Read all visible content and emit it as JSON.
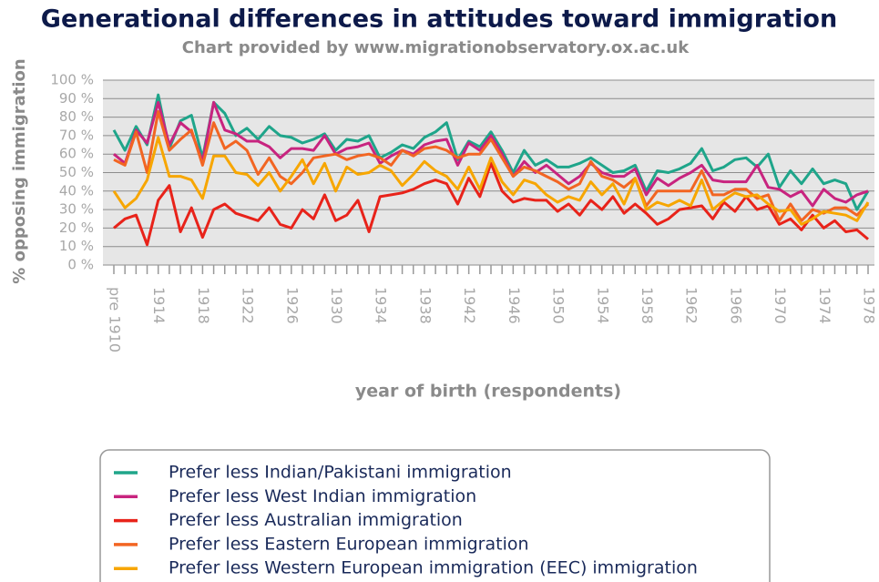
{
  "chart_data": {
    "type": "line",
    "title": "Generational differences in attitudes toward immigration",
    "subtitle": "Chart provided by www.migrationobservatory.ox.ac.uk",
    "x_label": "year of birth (respondents)",
    "y_label": "% opposing immigration",
    "categories": [
      "pre 1910",
      null,
      null,
      null,
      "1914",
      null,
      null,
      null,
      "1918",
      null,
      null,
      null,
      "1922",
      null,
      null,
      null,
      "1926",
      null,
      null,
      null,
      "1930",
      null,
      null,
      null,
      "1934",
      null,
      null,
      null,
      "1938",
      null,
      null,
      null,
      "1942",
      null,
      null,
      null,
      "1946",
      null,
      null,
      null,
      "1950",
      null,
      null,
      null,
      "1954",
      null,
      null,
      null,
      "1958",
      null,
      null,
      null,
      "1962",
      null,
      null,
      null,
      "1966",
      null,
      null,
      null,
      "1970",
      null,
      null,
      null,
      "1974",
      null,
      null,
      null,
      "1978"
    ],
    "ylim": [
      0,
      100
    ],
    "yticks": [
      {
        "value": 0,
        "label": "0 %"
      },
      {
        "value": 10,
        "label": "10 %"
      },
      {
        "value": 20,
        "label": "20 %"
      },
      {
        "value": 30,
        "label": "30 %"
      },
      {
        "value": 40,
        "label": "40 %"
      },
      {
        "value": 50,
        "label": "50 %"
      },
      {
        "value": 60,
        "label": "60 %"
      },
      {
        "value": 70,
        "label": "70 %"
      },
      {
        "value": 80,
        "label": "80 %"
      },
      {
        "value": 90,
        "label": "90 %"
      },
      {
        "value": 100,
        "label": "100 %"
      }
    ],
    "grid": true,
    "series": [
      {
        "name": "Prefer less Indian/Pakistani immigration",
        "color": "#1fa58a",
        "values": [
          73,
          62,
          75,
          65,
          92,
          63,
          78,
          81,
          58,
          88,
          82,
          70,
          74,
          68,
          75,
          70,
          69,
          66,
          68,
          71,
          62,
          68,
          67,
          70,
          58,
          61,
          65,
          63,
          69,
          72,
          77,
          57,
          67,
          64,
          72,
          62,
          50,
          62,
          54,
          57,
          53,
          53,
          55,
          58,
          54,
          50,
          51,
          54,
          40,
          51,
          50,
          52,
          55,
          63,
          51,
          53,
          57,
          58,
          53,
          60,
          42,
          51,
          44,
          52,
          44,
          46,
          44,
          30,
          40
        ]
      },
      {
        "name": "Prefer less West Indian immigration",
        "color": "#c8247f",
        "values": [
          60,
          55,
          73,
          66,
          88,
          65,
          77,
          72,
          56,
          88,
          73,
          71,
          67,
          67,
          64,
          58,
          63,
          63,
          62,
          70,
          60,
          63,
          64,
          66,
          55,
          59,
          62,
          60,
          65,
          67,
          68,
          54,
          66,
          62,
          70,
          60,
          48,
          56,
          50,
          54,
          49,
          44,
          48,
          55,
          50,
          48,
          48,
          52,
          38,
          47,
          43,
          47,
          50,
          54,
          46,
          45,
          45,
          45,
          54,
          42,
          41,
          37,
          40,
          32,
          41,
          36,
          34,
          38,
          40
        ]
      },
      {
        "name": "Prefer less Australian immigration",
        "color": "#e8231a",
        "values": [
          20,
          25,
          27,
          11,
          35,
          43,
          18,
          31,
          15,
          30,
          33,
          28,
          26,
          24,
          31,
          22,
          20,
          30,
          25,
          38,
          24,
          27,
          35,
          18,
          37,
          38,
          39,
          41,
          44,
          46,
          44,
          33,
          47,
          37,
          55,
          40,
          34,
          36,
          35,
          35,
          29,
          33,
          27,
          35,
          30,
          37,
          28,
          33,
          28,
          22,
          25,
          30,
          31,
          32,
          25,
          34,
          29,
          37,
          30,
          32,
          22,
          25,
          19,
          27,
          20,
          24,
          18,
          19,
          14
        ]
      },
      {
        "name": "Prefer less Eastern European immigration",
        "color": "#f26522",
        "values": [
          57,
          54,
          72,
          50,
          83,
          62,
          68,
          73,
          54,
          77,
          63,
          67,
          62,
          49,
          58,
          48,
          44,
          50,
          58,
          59,
          60,
          57,
          59,
          60,
          58,
          54,
          62,
          59,
          63,
          64,
          62,
          58,
          60,
          60,
          68,
          58,
          48,
          53,
          51,
          48,
          45,
          41,
          44,
          56,
          48,
          46,
          42,
          47,
          32,
          40,
          40,
          40,
          40,
          51,
          38,
          38,
          41,
          41,
          36,
          38,
          24,
          33,
          24,
          30,
          28,
          31,
          31,
          27,
          33
        ]
      },
      {
        "name": "Prefer less Western European immigration (EEC) immigration",
        "color": "#f7a600",
        "values": [
          40,
          31,
          36,
          46,
          69,
          48,
          48,
          46,
          36,
          59,
          59,
          50,
          49,
          43,
          50,
          40,
          48,
          57,
          44,
          55,
          40,
          53,
          49,
          50,
          54,
          51,
          43,
          49,
          56,
          51,
          48,
          41,
          53,
          41,
          58,
          45,
          38,
          46,
          44,
          38,
          34,
          37,
          35,
          45,
          38,
          44,
          33,
          47,
          30,
          34,
          32,
          35,
          32,
          46,
          30,
          35,
          39,
          37,
          38,
          33,
          29,
          30,
          22,
          25,
          29,
          28,
          27,
          24,
          34
        ]
      }
    ]
  }
}
